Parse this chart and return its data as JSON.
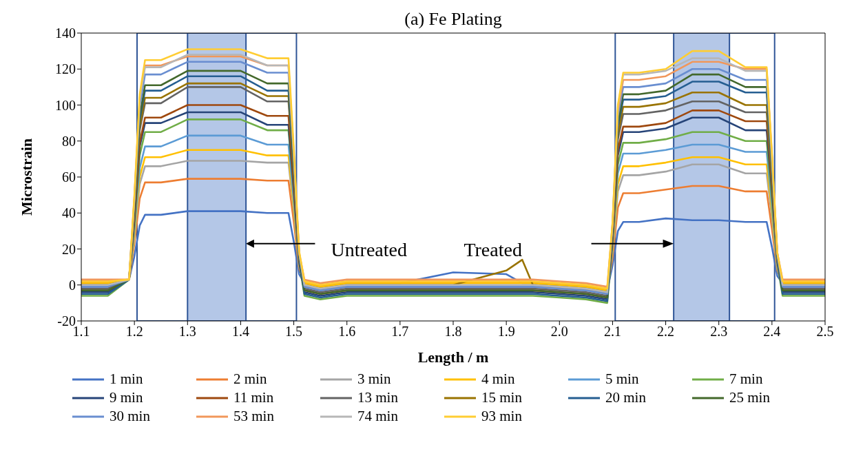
{
  "chart_data": {
    "type": "line",
    "title": "(a) Fe Plating",
    "xlabel": "Length / m",
    "ylabel": "Microstrain",
    "x": [
      1.1,
      1.15,
      1.19,
      1.2,
      1.21,
      1.22,
      1.25,
      1.3,
      1.35,
      1.4,
      1.45,
      1.49,
      1.5,
      1.51,
      1.52,
      1.55,
      1.6,
      1.7,
      1.8,
      1.9,
      1.93,
      1.95,
      2.0,
      2.05,
      2.09,
      2.1,
      2.11,
      2.12,
      2.15,
      2.2,
      2.25,
      2.3,
      2.35,
      2.39,
      2.4,
      2.41,
      2.42,
      2.45,
      2.5
    ],
    "xlim": [
      1.1,
      2.5
    ],
    "xticks": [
      1.1,
      1.2,
      1.3,
      1.4,
      1.5,
      1.6,
      1.7,
      1.8,
      1.9,
      {
        "value": 2,
        "label": "2.0"
      },
      2.1,
      2.2,
      2.3,
      2.4,
      2.5
    ],
    "ylim": [
      -20,
      140
    ],
    "yticks": [
      -20,
      0,
      20,
      40,
      60,
      80,
      100,
      120,
      140
    ],
    "legend": "bottom",
    "marker": "none",
    "line_style": "solid",
    "bands": [
      {
        "axis": "x",
        "from": 1.205,
        "to": 1.505,
        "color": "#ffffff"
      },
      {
        "axis": "x",
        "from": 2.105,
        "to": 2.405,
        "color": "#ffffff"
      },
      {
        "axis": "x",
        "from": 1.3,
        "to": 1.41,
        "color": "#b4c7e7"
      },
      {
        "axis": "x",
        "from": 2.215,
        "to": 2.32,
        "color": "#b4c7e7"
      }
    ],
    "annotations": [
      "Untreated",
      "Treated"
    ],
    "series": [
      {
        "name": "1 min",
        "color": "#4472c4",
        "values": [
          1,
          1,
          3,
          16,
          33,
          39,
          39,
          41,
          41,
          41,
          40,
          40,
          24,
          6,
          1,
          -1,
          1,
          1,
          7,
          6,
          1,
          1,
          0,
          -1,
          -3,
          11,
          30,
          35,
          35,
          37,
          36,
          36,
          35,
          35,
          21,
          5,
          1,
          1,
          1
        ]
      },
      {
        "name": "2 min",
        "color": "#ed7d31",
        "values": [
          2,
          2,
          3,
          23,
          48,
          57,
          57,
          59,
          59,
          59,
          58,
          58,
          35,
          9,
          2,
          0,
          2,
          2,
          2,
          2,
          2,
          2,
          1,
          0,
          -2,
          15,
          43,
          51,
          51,
          53,
          55,
          55,
          52,
          52,
          31,
          8,
          2,
          2,
          2
        ]
      },
      {
        "name": "3 min",
        "color": "#a5a5a5",
        "values": [
          0,
          0,
          3,
          26,
          56,
          66,
          66,
          69,
          69,
          69,
          68,
          68,
          41,
          10,
          0,
          -2,
          0,
          0,
          0,
          0,
          0,
          0,
          -1,
          -2,
          -4,
          18,
          52,
          61,
          61,
          63,
          67,
          67,
          62,
          62,
          37,
          9,
          0,
          0,
          0
        ]
      },
      {
        "name": "4 min",
        "color": "#ffc000",
        "values": [
          1,
          1,
          3,
          28,
          60,
          71,
          71,
          75,
          75,
          75,
          72,
          72,
          43,
          11,
          1,
          -1,
          1,
          1,
          1,
          1,
          1,
          1,
          0,
          -1,
          -3,
          20,
          56,
          66,
          66,
          68,
          71,
          71,
          67,
          67,
          40,
          10,
          1,
          1,
          1
        ]
      },
      {
        "name": "5 min",
        "color": "#5b9bd5",
        "values": [
          -1,
          -1,
          3,
          31,
          65,
          77,
          77,
          83,
          83,
          83,
          78,
          78,
          47,
          12,
          -1,
          -3,
          -1,
          -1,
          -1,
          -1,
          -1,
          -1,
          -2,
          -3,
          -5,
          22,
          62,
          73,
          73,
          75,
          78,
          78,
          74,
          74,
          44,
          11,
          -1,
          -1,
          -1
        ]
      },
      {
        "name": "7 min",
        "color": "#70ad47",
        "values": [
          -6,
          -6,
          3,
          34,
          72,
          85,
          85,
          92,
          92,
          92,
          86,
          86,
          52,
          13,
          -6,
          -8,
          -6,
          -6,
          -6,
          -6,
          -6,
          -6,
          -7,
          -8,
          -10,
          24,
          67,
          79,
          79,
          81,
          85,
          85,
          80,
          80,
          48,
          12,
          -6,
          -6,
          -6
        ]
      },
      {
        "name": "9 min",
        "color": "#264478",
        "values": [
          -4,
          -4,
          3,
          36,
          77,
          90,
          90,
          96,
          96,
          96,
          89,
          89,
          53,
          13,
          -4,
          -6,
          -4,
          -4,
          -4,
          -4,
          -4,
          -4,
          -5,
          -6,
          -8,
          26,
          72,
          85,
          85,
          87,
          93,
          93,
          86,
          86,
          52,
          13,
          -4,
          -4,
          -4
        ]
      },
      {
        "name": "11 min",
        "color": "#9e480e",
        "values": [
          -3,
          -3,
          3,
          37,
          79,
          93,
          93,
          100,
          100,
          100,
          94,
          94,
          56,
          14,
          -3,
          -5,
          -3,
          -3,
          -3,
          -3,
          -3,
          -3,
          -4,
          -5,
          -7,
          26,
          75,
          88,
          88,
          90,
          97,
          97,
          91,
          91,
          55,
          14,
          -3,
          -3,
          -3
        ]
      },
      {
        "name": "13 min",
        "color": "#636363",
        "values": [
          -2,
          -2,
          3,
          40,
          86,
          101,
          101,
          110,
          110,
          110,
          102,
          102,
          61,
          15,
          -2,
          -4,
          -2,
          -2,
          -2,
          -2,
          -2,
          -2,
          -3,
          -4,
          -6,
          29,
          81,
          95,
          95,
          97,
          102,
          102,
          96,
          96,
          58,
          14,
          -2,
          -2,
          -2
        ]
      },
      {
        "name": "15 min",
        "color": "#997300",
        "values": [
          0,
          0,
          3,
          42,
          88,
          104,
          104,
          112,
          112,
          112,
          105,
          105,
          63,
          16,
          0,
          -2,
          0,
          0,
          0,
          8,
          14,
          0,
          -1,
          -2,
          -4,
          30,
          84,
          99,
          99,
          101,
          107,
          107,
          100,
          100,
          60,
          15,
          0,
          0,
          0
        ]
      },
      {
        "name": "20 min",
        "color": "#255e91",
        "values": [
          -5,
          -5,
          3,
          43,
          92,
          108,
          108,
          116,
          116,
          116,
          108,
          108,
          65,
          16,
          -5,
          -7,
          -5,
          -5,
          -5,
          -5,
          -5,
          -5,
          -6,
          -7,
          -9,
          31,
          88,
          103,
          103,
          105,
          113,
          113,
          107,
          107,
          64,
          16,
          -5,
          -5,
          -5
        ]
      },
      {
        "name": "25 min",
        "color": "#43682b",
        "values": [
          -3,
          -3,
          3,
          44,
          94,
          111,
          111,
          119,
          119,
          119,
          112,
          112,
          67,
          17,
          -3,
          -5,
          -3,
          -3,
          -3,
          -3,
          -3,
          -3,
          -4,
          -5,
          -7,
          32,
          90,
          106,
          106,
          108,
          117,
          117,
          110,
          110,
          66,
          17,
          -3,
          -3,
          -3
        ]
      },
      {
        "name": "30 min",
        "color": "#698ed0",
        "values": [
          -1,
          -1,
          3,
          47,
          99,
          117,
          117,
          124,
          124,
          124,
          118,
          118,
          71,
          18,
          -1,
          -3,
          -1,
          -1,
          -1,
          -1,
          -1,
          -1,
          -2,
          -3,
          -5,
          33,
          94,
          110,
          110,
          112,
          120,
          120,
          114,
          114,
          68,
          17,
          -1,
          -1,
          -1
        ]
      },
      {
        "name": "53 min",
        "color": "#f1975a",
        "values": [
          3,
          3,
          3,
          49,
          104,
          122,
          122,
          127,
          127,
          127,
          122,
          122,
          73,
          18,
          3,
          1,
          3,
          3,
          3,
          3,
          3,
          3,
          2,
          1,
          -1,
          34,
          97,
          114,
          114,
          116,
          124,
          124,
          120,
          120,
          72,
          18,
          3,
          3,
          3
        ]
      },
      {
        "name": "74 min",
        "color": "#b7b7b7",
        "values": [
          0,
          0,
          3,
          48,
          103,
          121,
          121,
          128,
          128,
          128,
          122,
          122,
          73,
          18,
          0,
          -2,
          0,
          0,
          0,
          0,
          0,
          0,
          -1,
          -2,
          -4,
          35,
          99,
          117,
          117,
          119,
          126,
          126,
          119,
          119,
          71,
          18,
          0,
          0,
          0
        ]
      },
      {
        "name": "93 min",
        "color": "#ffcd33",
        "values": [
          2,
          2,
          3,
          50,
          106,
          125,
          125,
          131,
          131,
          131,
          126,
          126,
          76,
          19,
          2,
          0,
          2,
          2,
          2,
          2,
          2,
          2,
          1,
          0,
          -2,
          35,
          100,
          118,
          118,
          120,
          130,
          130,
          121,
          121,
          73,
          18,
          2,
          2,
          2
        ]
      }
    ]
  }
}
